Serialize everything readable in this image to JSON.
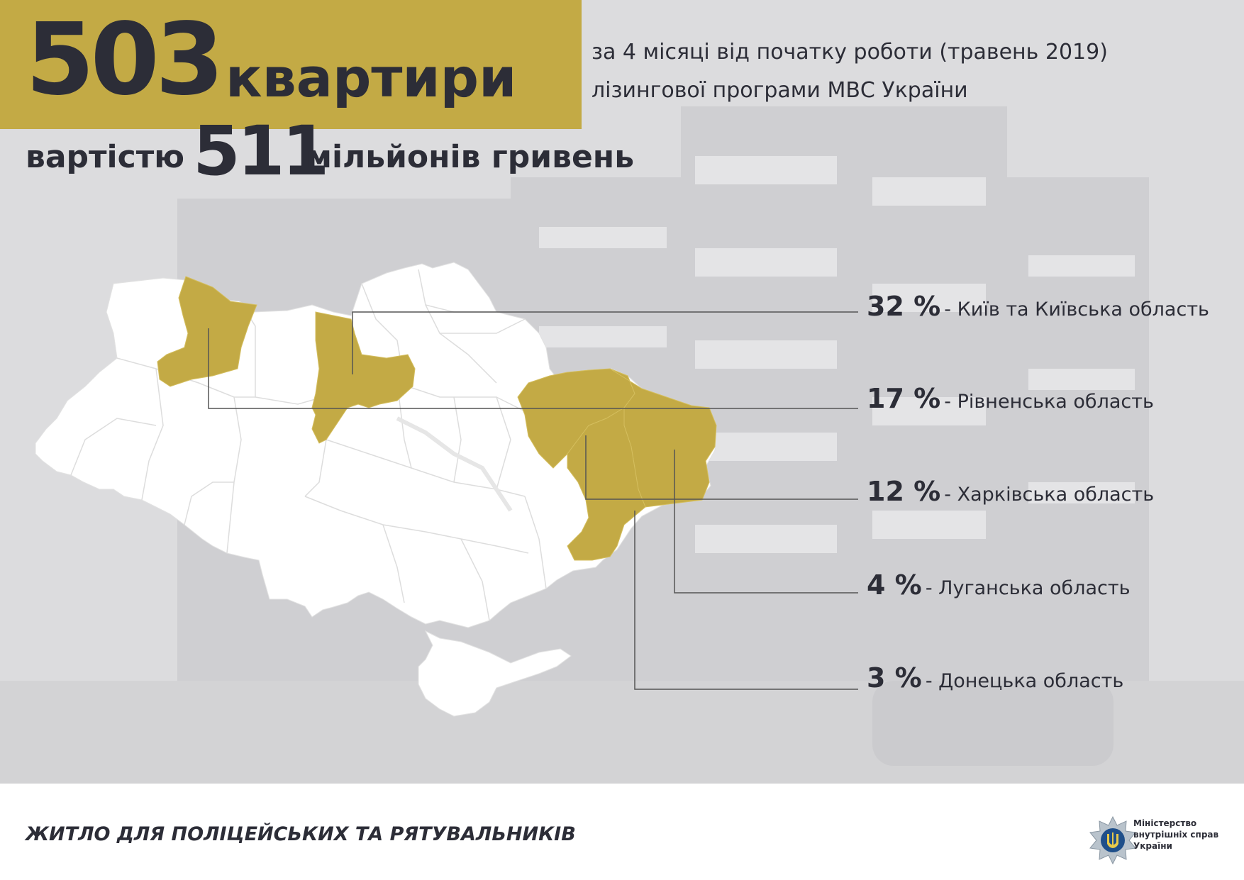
{
  "header": {
    "count": "503",
    "count_word": "квартири",
    "cost_prefix": "вартістю",
    "cost_number": "511",
    "cost_suffix": "мільйонів гривень",
    "subtitle_line1": "за 4 місяці від початку роботи (травень 2019)",
    "subtitle_line2": "лізингової програми МВС України"
  },
  "legend": [
    {
      "pct": "32 %",
      "name": "- Київ та Київська область"
    },
    {
      "pct": "17 %",
      "name": "- Рівненська область"
    },
    {
      "pct": "12 %",
      "name": "- Харківська область"
    },
    {
      "pct": "4 %",
      "name": "- Луганська область"
    },
    {
      "pct": "3 %",
      "name": "- Донецька область"
    }
  ],
  "colors": {
    "highlight": "#c3aa45",
    "map_fill": "#ffffff",
    "dark": "#2c2d37",
    "border": "#dcdcdc",
    "leader": "#555555"
  },
  "footer": {
    "title": "ЖИТЛО ДЛЯ ПОЛІЦЕЙСЬКИХ ТА РЯТУВАЛЬНИКІВ"
  },
  "logo": {
    "line1": "Міністерство",
    "line2": "внутрішніх справ",
    "line3": "України",
    "icon": "trident-emblem-icon"
  }
}
